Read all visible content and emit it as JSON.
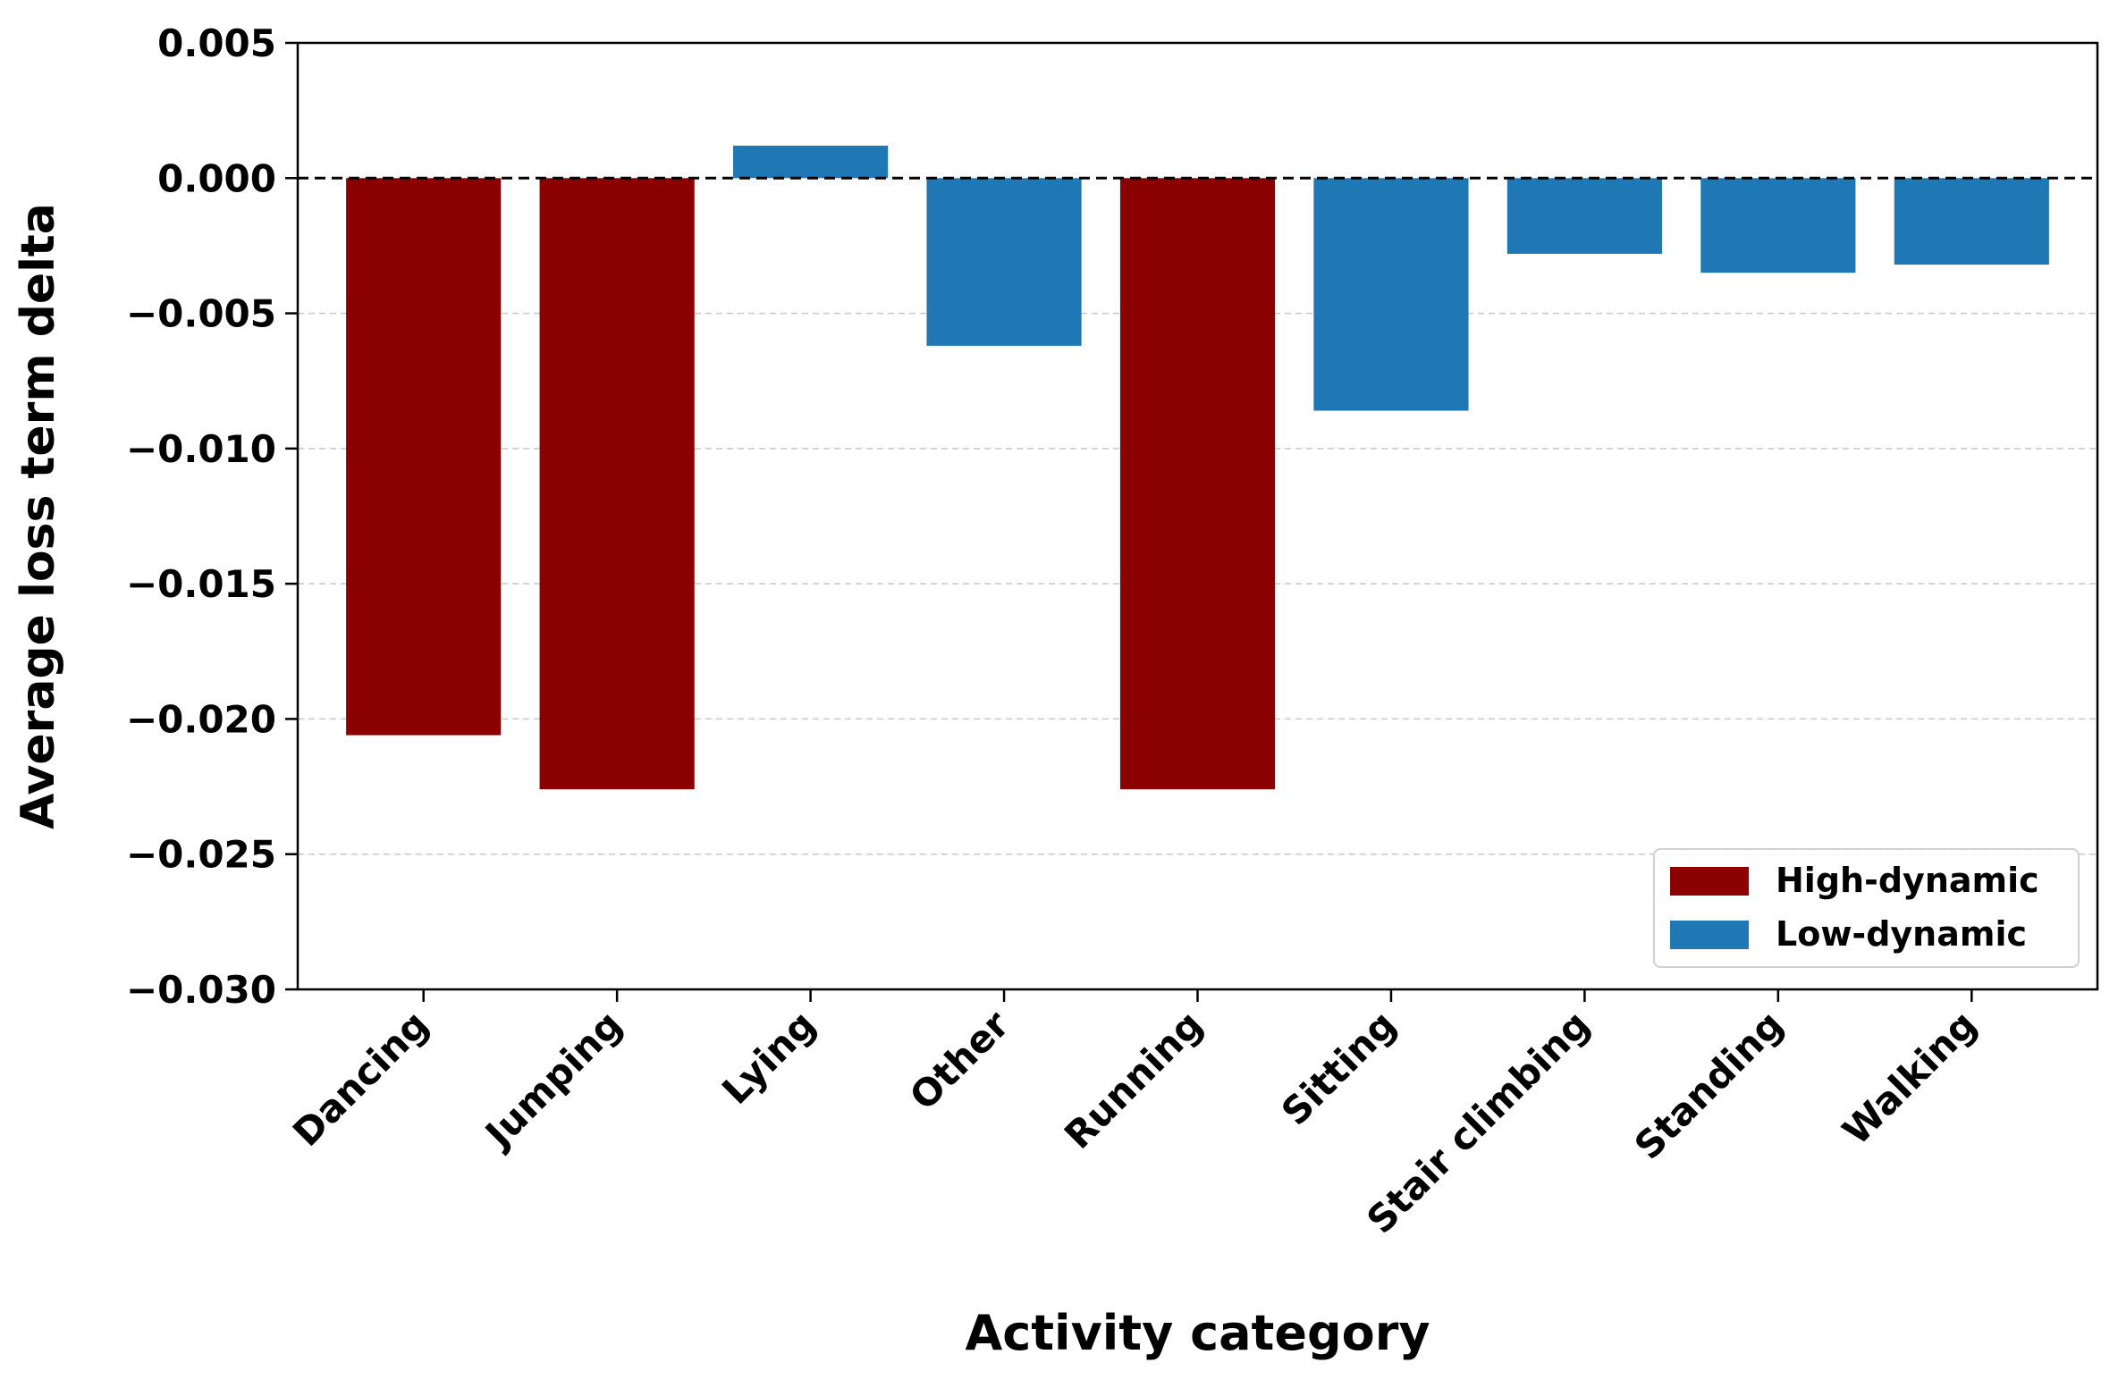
{
  "chart_data": {
    "type": "bar",
    "title": "",
    "xlabel": "Activity category",
    "ylabel": "Average loss term delta",
    "categories": [
      "Dancing",
      "Jumping",
      "Lying",
      "Other",
      "Running",
      "Sitting",
      "Stair climbing",
      "Standing",
      "Walking"
    ],
    "values": [
      -0.0206,
      -0.0226,
      0.0012,
      -0.0062,
      -0.0226,
      -0.0086,
      -0.0028,
      -0.0035,
      -0.0032
    ],
    "groups": [
      "High-dynamic",
      "High-dynamic",
      "Low-dynamic",
      "Low-dynamic",
      "High-dynamic",
      "Low-dynamic",
      "Low-dynamic",
      "Low-dynamic",
      "Low-dynamic"
    ],
    "ylim": [
      -0.03,
      0.005
    ],
    "yticks": [
      0.005,
      0.0,
      -0.005,
      -0.01,
      -0.015,
      -0.02,
      -0.025,
      -0.03
    ],
    "ytick_labels": [
      "0.005",
      "0.000",
      "−0.005",
      "−0.010",
      "−0.015",
      "−0.020",
      "−0.025",
      "−0.030"
    ],
    "grid": "horizontal dashed",
    "reference_line": 0,
    "legend": {
      "placement": "lower-right",
      "entries": [
        {
          "label": "High-dynamic",
          "color": "#8b0000"
        },
        {
          "label": "Low-dynamic",
          "color": "#1f77b4"
        }
      ]
    }
  }
}
